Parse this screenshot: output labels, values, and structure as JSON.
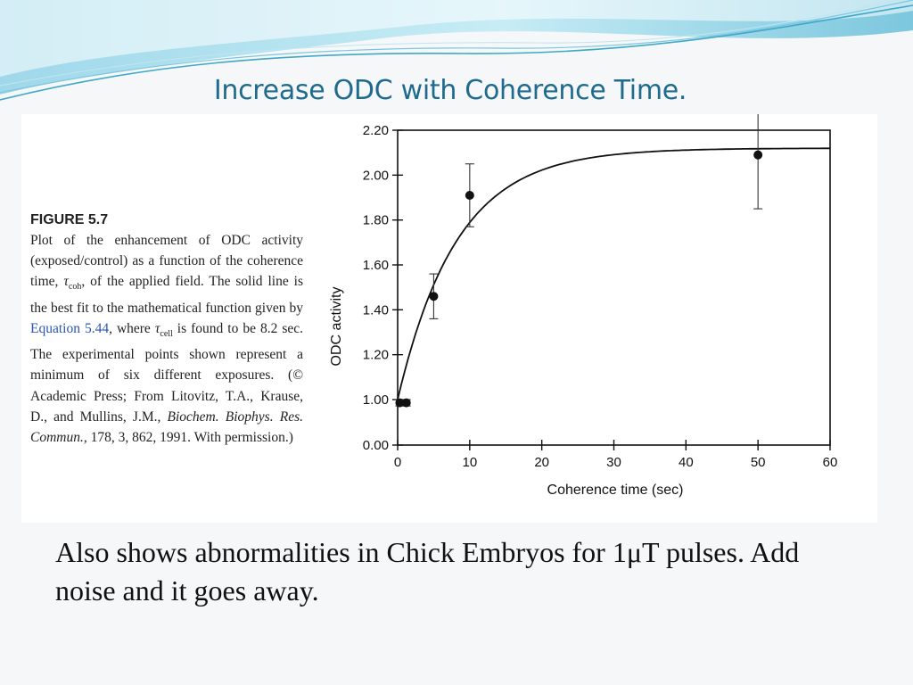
{
  "slide": {
    "title": "Increase ODC with Coherence Time.",
    "body_text": "Also shows abnormalities in Chick Embryos for 1μT pulses. Add noise and it goes away."
  },
  "caption": {
    "heading": "FIGURE 5.7",
    "part1": "Plot of the enhancement of ODC activity (exposed/control) as a function of the coherence time, ",
    "tau_coh": "τ",
    "coh_sub": "coh",
    "part2": ", of the applied field. The solid line is the best fit to the mathematical function given by ",
    "equation_link": "Equation 5.44",
    "part3": ", where ",
    "tau_cell": "τ",
    "cell_sub": "cell",
    "part4": " is found to be 8.2 sec. The experimental points shown represent a minimum of six different exposures. (© Academic Press; From Litovitz, T.A., Krause, D., and Mullins, J.M., ",
    "journal": "Biochem. Biophys. Res. Commun.",
    "part5": ", 178, 3, 862, 1991. With permission.)"
  },
  "colors": {
    "title": "#1f6b8e",
    "wave_light": "#bfe6f1",
    "wave_mid": "#7cc7de",
    "wave_dark": "#3fa8c9"
  },
  "chart_data": {
    "type": "scatter",
    "xlabel": "Coherence time (sec)",
    "ylabel": "ODC activity",
    "x_ticks": [
      0,
      10,
      20,
      30,
      40,
      50,
      60
    ],
    "y_ticks": [
      0.0,
      1.0,
      1.2,
      1.4,
      1.6,
      1.8,
      2.0,
      2.2
    ],
    "y_tick_labels": [
      "0.00",
      "1.00",
      "1.20",
      "1.40",
      "1.60",
      "1.80",
      "2.00",
      "2.20"
    ],
    "xlim": [
      0,
      60
    ],
    "ylim_display": [
      0.0,
      2.2
    ],
    "y_axis_break": "0.00 to 1.00",
    "grid": false,
    "points": [
      {
        "x": 0.3,
        "y": 0.93,
        "err": 0.07
      },
      {
        "x": 1.2,
        "y": 0.93,
        "err": 0.07
      },
      {
        "x": 5.0,
        "y": 1.46,
        "err": 0.1
      },
      {
        "x": 10.0,
        "y": 1.91,
        "err": 0.14
      },
      {
        "x": 50.0,
        "y": 2.09,
        "err": 0.24
      }
    ],
    "fit_curve": {
      "description": "best fit",
      "y0": 1.0,
      "y_max": 2.12,
      "tau": 8.2
    }
  }
}
